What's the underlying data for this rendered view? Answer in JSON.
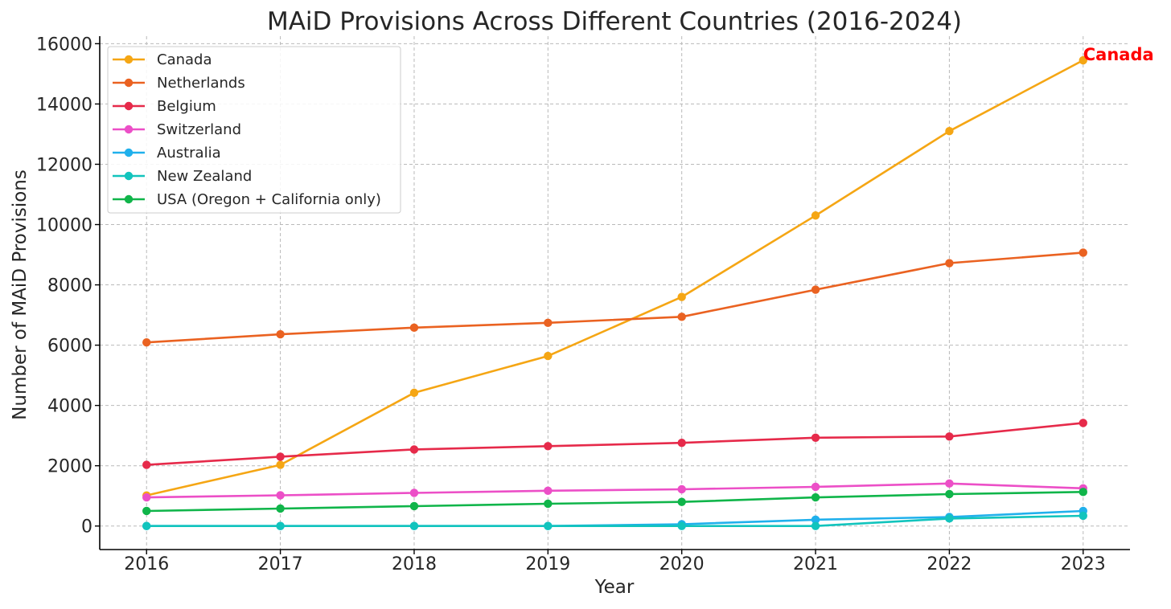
{
  "chart_data": {
    "type": "line",
    "title": "MAiD Provisions Across Different Countries (2016-2024)",
    "xlabel": "Year",
    "ylabel": "Number of MAiD Provisions",
    "x": [
      2016,
      2017,
      2018,
      2019,
      2020,
      2021,
      2022,
      2023
    ],
    "xlim": [
      2015.65,
      2023.35
    ],
    "ylim": [
      -780,
      16250
    ],
    "yticks": [
      0,
      2000,
      4000,
      6000,
      8000,
      10000,
      12000,
      14000,
      16000
    ],
    "grid": true,
    "legend_position": "top-left",
    "series": [
      {
        "name": "Canada",
        "color": "#f5a614",
        "values": [
          1015,
          2030,
          4420,
          5640,
          7600,
          10300,
          13100,
          15450
        ]
      },
      {
        "name": "Netherlands",
        "color": "#ea6221",
        "values": [
          6090,
          6360,
          6580,
          6740,
          6940,
          7840,
          8720,
          9070
        ]
      },
      {
        "name": "Belgium",
        "color": "#e62a4a",
        "values": [
          2030,
          2300,
          2540,
          2650,
          2760,
          2930,
          2970,
          3420
        ]
      },
      {
        "name": "Switzerland",
        "color": "#ec4fc7",
        "values": [
          950,
          1020,
          1100,
          1170,
          1220,
          1300,
          1410,
          1250
        ]
      },
      {
        "name": "Australia",
        "color": "#20b0ec",
        "values": [
          0,
          0,
          0,
          0,
          60,
          210,
          300,
          500
        ]
      },
      {
        "name": "New Zealand",
        "color": "#12c4bd",
        "values": [
          0,
          0,
          0,
          0,
          0,
          0,
          250,
          340
        ]
      },
      {
        "name": "USA (Oregon + California only)",
        "color": "#10b54a",
        "values": [
          500,
          580,
          660,
          740,
          800,
          950,
          1060,
          1130
        ]
      }
    ],
    "annotations": [
      {
        "text": "Canada",
        "x": 2023,
        "y": 15450,
        "color": "#ff0000"
      }
    ]
  }
}
